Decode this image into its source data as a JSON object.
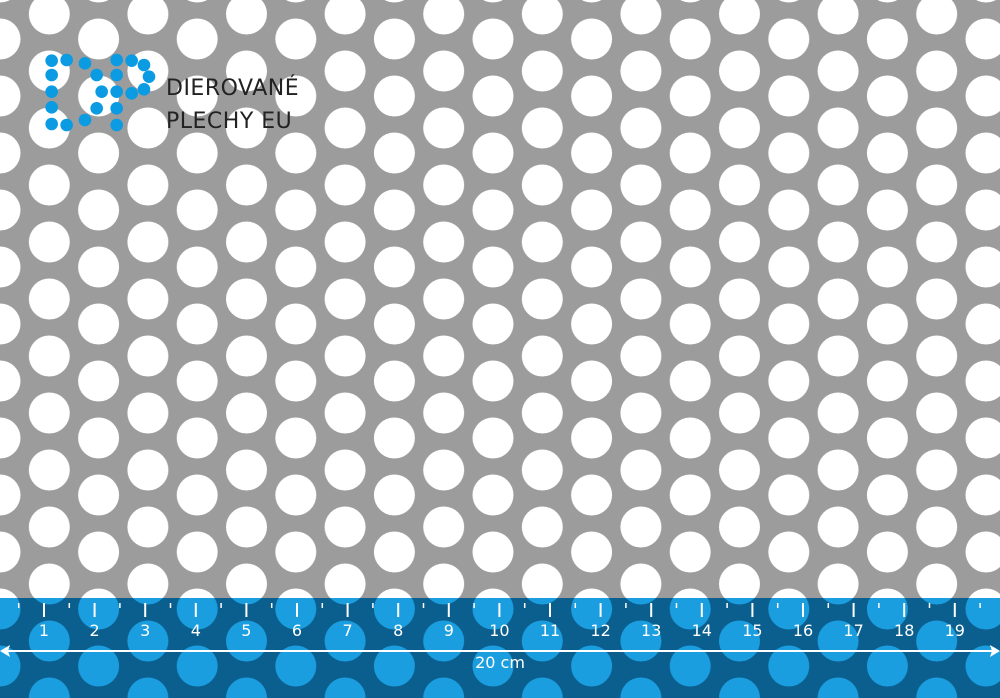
{
  "logo": {
    "line1": "DIEROVANÉ",
    "line2": "PLECHY EU",
    "dot_color": "#0a9be2"
  },
  "ruler": {
    "numbers": [
      "1",
      "2",
      "3",
      "4",
      "5",
      "6",
      "7",
      "8",
      "9",
      "10",
      "11",
      "12",
      "13",
      "14",
      "15",
      "16",
      "17",
      "18",
      "19"
    ],
    "total_label": "20 cm",
    "band_color": "#0b5f8e",
    "hole_color": "#1b9ee0"
  },
  "sheet": {
    "metal_color": "#9c9c9c",
    "hole_color": "#ffffff"
  }
}
